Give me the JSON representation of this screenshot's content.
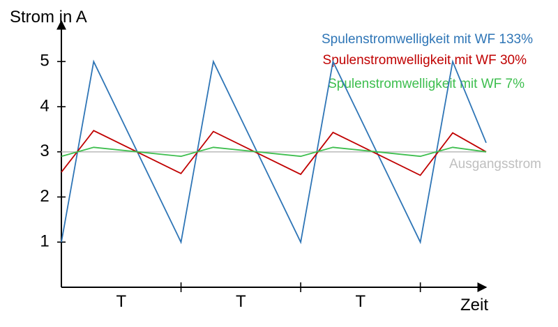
{
  "chart_data": {
    "type": "line",
    "ylabel": "Strom in A",
    "xlabel": "Zeit",
    "ylim": [
      0,
      5.9
    ],
    "y_ticks": [
      1,
      2,
      3,
      4,
      5
    ],
    "x_range": [
      0,
      3.55
    ],
    "x_dividers": [
      1,
      2,
      3
    ],
    "period_labels": [
      "T",
      "T",
      "T"
    ],
    "reference": {
      "name": "Ausgangsstrom",
      "value": 3,
      "color": "#bfbfbf"
    },
    "series": [
      {
        "name": "Spulenstromwelligkeit mit WF 133%",
        "color": "#2e75b6",
        "points": [
          [
            0,
            1
          ],
          [
            0.27,
            5
          ],
          [
            1,
            1
          ],
          [
            1.27,
            5
          ],
          [
            2,
            1
          ],
          [
            2.27,
            5
          ],
          [
            3,
            1
          ],
          [
            3.27,
            5
          ],
          [
            3.55,
            3.2
          ]
        ]
      },
      {
        "name": "Spulenstromwelligkeit mit WF 30%",
        "color": "#c00000",
        "points": [
          [
            0,
            2.55
          ],
          [
            0.27,
            3.47
          ],
          [
            1,
            2.52
          ],
          [
            1.27,
            3.45
          ],
          [
            2,
            2.5
          ],
          [
            2.27,
            3.43
          ],
          [
            3,
            2.48
          ],
          [
            3.27,
            3.42
          ],
          [
            3.55,
            3.0
          ]
        ]
      },
      {
        "name": "Spulenstromwelligkeit mit WF 7%",
        "color": "#3dbe4e",
        "points": [
          [
            0,
            2.9
          ],
          [
            0.27,
            3.1
          ],
          [
            1,
            2.9
          ],
          [
            1.27,
            3.1
          ],
          [
            2,
            2.9
          ],
          [
            2.27,
            3.1
          ],
          [
            3,
            2.9
          ],
          [
            3.27,
            3.1
          ],
          [
            3.55,
            3.0
          ]
        ]
      }
    ]
  }
}
